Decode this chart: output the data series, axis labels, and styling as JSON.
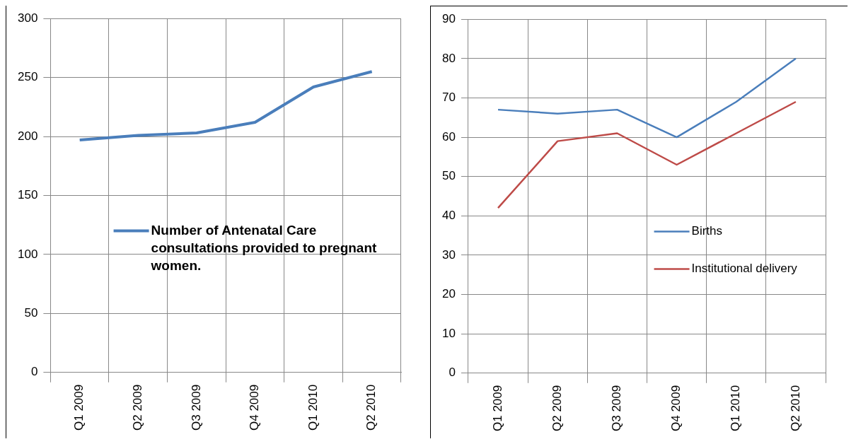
{
  "chart_data": [
    {
      "type": "line",
      "categories": [
        "Q1 2009",
        "Q2 2009",
        "Q3 2009",
        "Q4 2009",
        "Q1 2010",
        "Q2 2010"
      ],
      "series": [
        {
          "name": "Number of Antenatal Care consultations provided to pregnant women.",
          "color": "#4a7ebb",
          "values": [
            197,
            201,
            203,
            212,
            242,
            255
          ]
        }
      ],
      "ylim": [
        0,
        300
      ],
      "yticks": [
        0,
        50,
        100,
        150,
        200,
        250,
        300
      ],
      "grid": true,
      "legend": "center",
      "marker": "none"
    },
    {
      "type": "line",
      "categories": [
        "Q1 2009",
        "Q2 2009",
        "Q3 2009",
        "Q4 2009",
        "Q1 2010",
        "Q2 2010"
      ],
      "series": [
        {
          "name": "Births",
          "color": "#4a7ebb",
          "values": [
            67,
            66,
            67,
            60,
            69,
            80
          ]
        },
        {
          "name": "Institutional delivery",
          "color": "#be4b48",
          "values": [
            42,
            59,
            61,
            53,
            61,
            69
          ]
        }
      ],
      "ylim": [
        0,
        90
      ],
      "yticks": [
        0,
        10,
        20,
        30,
        40,
        50,
        60,
        70,
        80,
        90
      ],
      "grid": true,
      "legend": "bottom right",
      "marker": "none"
    }
  ]
}
